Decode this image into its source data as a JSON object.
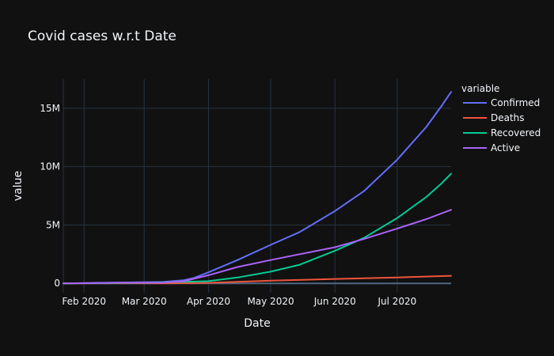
{
  "chart_data": {
    "type": "line",
    "title": "Covid cases w.r.t Date",
    "xlabel": "Date",
    "ylabel": "value",
    "x_range": [
      "2020-01-22",
      "2020-07-27"
    ],
    "ylim": [
      -800000,
      17500000
    ],
    "x_ticks": [
      {
        "date": "2020-02-01",
        "label": "Feb 2020"
      },
      {
        "date": "2020-03-01",
        "label": "Mar 2020"
      },
      {
        "date": "2020-04-01",
        "label": "Apr 2020"
      },
      {
        "date": "2020-05-01",
        "label": "May 2020"
      },
      {
        "date": "2020-06-01",
        "label": "Jun 2020"
      },
      {
        "date": "2020-07-01",
        "label": "Jul 2020"
      }
    ],
    "y_ticks": [
      {
        "value": 0,
        "label": "0"
      },
      {
        "value": 5000000,
        "label": "5M"
      },
      {
        "value": 10000000,
        "label": "10M"
      },
      {
        "value": 15000000,
        "label": "15M"
      }
    ],
    "grid": true,
    "legend": {
      "title": "variable",
      "position": "right"
    },
    "series": [
      {
        "name": "Confirmed",
        "color": "#636efa",
        "points": [
          [
            "2020-01-22",
            0
          ],
          [
            "2020-02-15",
            70000
          ],
          [
            "2020-03-10",
            120000
          ],
          [
            "2020-03-20",
            270000
          ],
          [
            "2020-03-25",
            470000
          ],
          [
            "2020-04-01",
            950000
          ],
          [
            "2020-04-15",
            2000000
          ],
          [
            "2020-05-01",
            3300000
          ],
          [
            "2020-05-15",
            4400000
          ],
          [
            "2020-06-01",
            6200000
          ],
          [
            "2020-06-15",
            7900000
          ],
          [
            "2020-07-01",
            10600000
          ],
          [
            "2020-07-15",
            13400000
          ],
          [
            "2020-07-22",
            15100000
          ],
          [
            "2020-07-27",
            16400000
          ]
        ]
      },
      {
        "name": "Deaths",
        "color": "#ef553b",
        "points": [
          [
            "2020-01-22",
            0
          ],
          [
            "2020-03-15",
            8000
          ],
          [
            "2020-04-01",
            50000
          ],
          [
            "2020-04-15",
            130000
          ],
          [
            "2020-05-01",
            230000
          ],
          [
            "2020-06-01",
            380000
          ],
          [
            "2020-07-01",
            510000
          ],
          [
            "2020-07-27",
            650000
          ]
        ]
      },
      {
        "name": "Recovered",
        "color": "#00cc96",
        "points": [
          [
            "2020-01-22",
            0
          ],
          [
            "2020-03-01",
            45000
          ],
          [
            "2020-04-01",
            190000
          ],
          [
            "2020-04-15",
            500000
          ],
          [
            "2020-05-01",
            1000000
          ],
          [
            "2020-05-15",
            1600000
          ],
          [
            "2020-06-01",
            2800000
          ],
          [
            "2020-06-15",
            3900000
          ],
          [
            "2020-07-01",
            5600000
          ],
          [
            "2020-07-15",
            7400000
          ],
          [
            "2020-07-22",
            8500000
          ],
          [
            "2020-07-27",
            9400000
          ]
        ]
      },
      {
        "name": "Active",
        "color": "#ab63fa",
        "points": [
          [
            "2020-01-22",
            0
          ],
          [
            "2020-02-15",
            55000
          ],
          [
            "2020-03-10",
            70000
          ],
          [
            "2020-03-20",
            180000
          ],
          [
            "2020-04-01",
            700000
          ],
          [
            "2020-04-15",
            1400000
          ],
          [
            "2020-05-01",
            2000000
          ],
          [
            "2020-05-15",
            2500000
          ],
          [
            "2020-06-01",
            3100000
          ],
          [
            "2020-06-15",
            3800000
          ],
          [
            "2020-07-01",
            4700000
          ],
          [
            "2020-07-15",
            5500000
          ],
          [
            "2020-07-27",
            6300000
          ]
        ]
      }
    ]
  }
}
